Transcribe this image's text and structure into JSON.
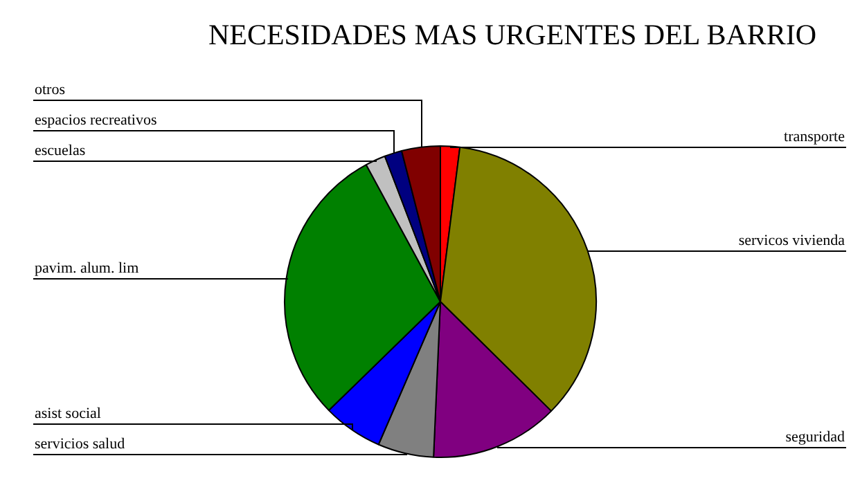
{
  "chart_data": {
    "type": "pie",
    "title": "NECESIDADES MAS URGENTES DEL BARRIO",
    "categories": [
      "transporte",
      "servicos vivienda",
      "seguridad",
      "servicios salud",
      "asist social",
      "pavim. alum. lim",
      "escuelas",
      "espacios recreativos",
      "otros"
    ],
    "values": [
      2,
      35.4,
      13.3,
      5.8,
      6.2,
      29.4,
      2.1,
      1.8,
      4
    ],
    "colors": [
      "#ff0000",
      "#808000",
      "#800080",
      "#808080",
      "#0000ff",
      "#008000",
      "#c0c0c0",
      "#000080",
      "#800000"
    ],
    "legend": false
  }
}
